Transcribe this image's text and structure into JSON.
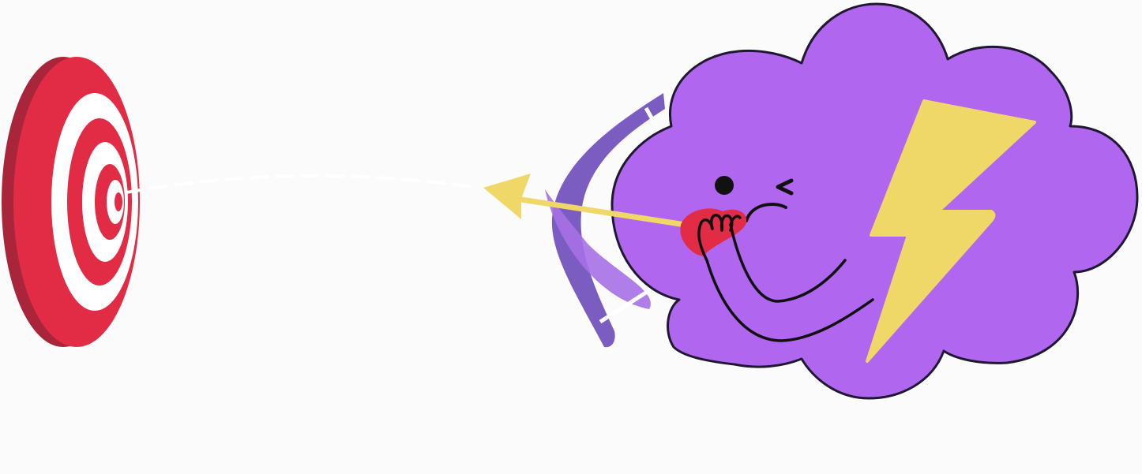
{
  "scene": {
    "background": "#fbfbfb",
    "elements": [
      {
        "name": "target",
        "icon": "target-icon",
        "colors": [
          "#e22b45",
          "#a8253a",
          "#ffffff"
        ]
      },
      {
        "name": "arrow-trail",
        "style": "dashed",
        "color": "#ffffff"
      },
      {
        "name": "arrow",
        "icon": "arrow-icon",
        "color": "#f0d868"
      },
      {
        "name": "bow",
        "icon": "bow-icon",
        "color": "#7b5cc1"
      },
      {
        "name": "storm-cloud-character",
        "icon": "cloud-icon",
        "color": "#b066ef"
      },
      {
        "name": "lightning-bolt",
        "icon": "lightning-icon",
        "color": "#f0d868"
      }
    ]
  }
}
